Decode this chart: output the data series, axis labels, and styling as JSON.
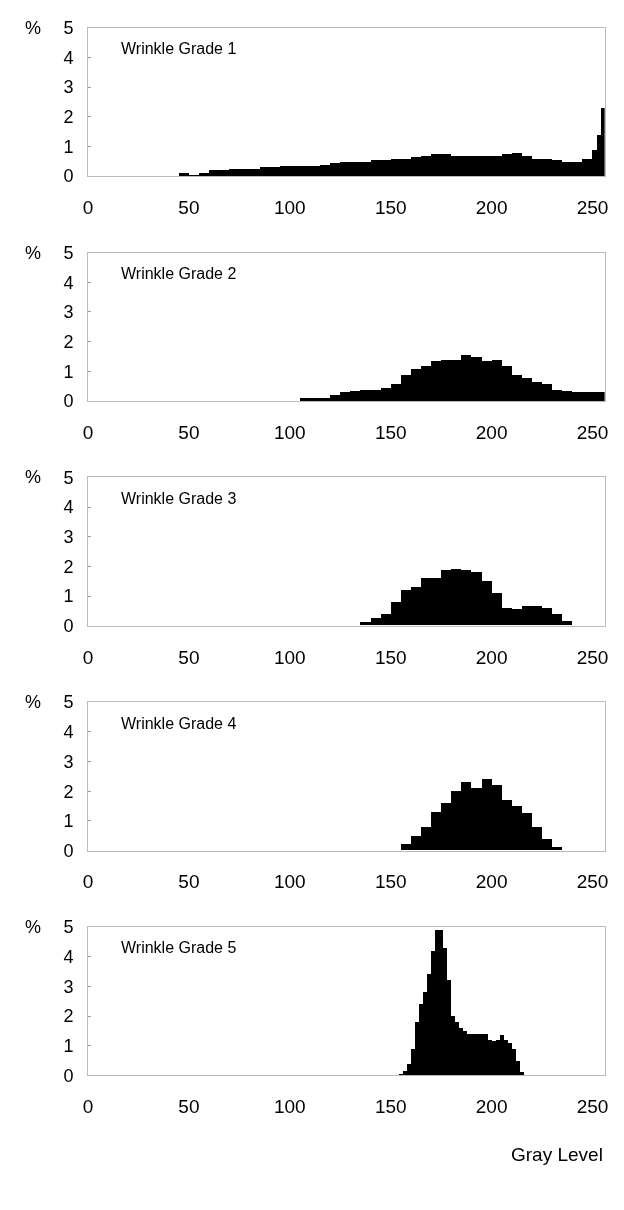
{
  "chart_data": [
    {
      "type": "histogram",
      "title": "Wrinkle Grade 1",
      "ylabel": "%",
      "bins": [
        45,
        50,
        55,
        60,
        65,
        70,
        75,
        80,
        85,
        90,
        95,
        100,
        105,
        110,
        115,
        120,
        125,
        130,
        135,
        140,
        145,
        150,
        155,
        160,
        165,
        170,
        175,
        180,
        185,
        190,
        195,
        200,
        205,
        210,
        215,
        220,
        225,
        230,
        235,
        240,
        245,
        250,
        252,
        254,
        256
      ],
      "values": [
        0.1,
        0.05,
        0.1,
        0.2,
        0.2,
        0.25,
        0.25,
        0.25,
        0.3,
        0.3,
        0.35,
        0.35,
        0.35,
        0.35,
        0.4,
        0.45,
        0.5,
        0.5,
        0.5,
        0.55,
        0.55,
        0.6,
        0.6,
        0.65,
        0.7,
        0.75,
        0.75,
        0.7,
        0.7,
        0.7,
        0.7,
        0.7,
        0.75,
        0.8,
        0.7,
        0.6,
        0.6,
        0.55,
        0.5,
        0.5,
        0.6,
        0.9,
        1.4,
        2.3
      ],
      "color": "#000000",
      "xlim": [
        0,
        256
      ],
      "ylim": [
        0,
        5
      ],
      "xticks": [
        0,
        50,
        100,
        150,
        200,
        250
      ],
      "yticks": [
        0,
        1,
        2,
        3,
        4,
        5
      ],
      "grid": false
    },
    {
      "type": "histogram",
      "title": "Wrinkle Grade 2",
      "ylabel": "%",
      "bins": [
        105,
        110,
        115,
        120,
        125,
        130,
        135,
        140,
        145,
        150,
        155,
        160,
        165,
        170,
        175,
        180,
        185,
        190,
        195,
        200,
        205,
        210,
        215,
        220,
        225,
        230,
        235,
        240,
        245,
        250,
        256
      ],
      "values": [
        0.1,
        0.1,
        0.1,
        0.2,
        0.3,
        0.35,
        0.4,
        0.4,
        0.45,
        0.6,
        0.9,
        1.1,
        1.2,
        1.35,
        1.4,
        1.4,
        1.55,
        1.5,
        1.35,
        1.4,
        1.2,
        0.9,
        0.8,
        0.65,
        0.6,
        0.4,
        0.35,
        0.3,
        0.3,
        0.3
      ],
      "color": "#000000",
      "xlim": [
        0,
        256
      ],
      "ylim": [
        0,
        5
      ],
      "xticks": [
        0,
        50,
        100,
        150,
        200,
        250
      ],
      "yticks": [
        0,
        1,
        2,
        3,
        4,
        5
      ],
      "grid": false
    },
    {
      "type": "histogram",
      "title": "Wrinkle Grade 3",
      "ylabel": "%",
      "bins": [
        135,
        140,
        145,
        150,
        155,
        160,
        165,
        170,
        175,
        180,
        185,
        190,
        195,
        200,
        205,
        210,
        215,
        220,
        225,
        230,
        235,
        240
      ],
      "values": [
        0.1,
        0.25,
        0.4,
        0.8,
        1.2,
        1.3,
        1.6,
        1.6,
        1.85,
        1.9,
        1.85,
        1.8,
        1.5,
        1.1,
        0.6,
        0.55,
        0.65,
        0.65,
        0.6,
        0.4,
        0.15
      ],
      "color": "#000000",
      "xlim": [
        0,
        256
      ],
      "ylim": [
        0,
        5
      ],
      "xticks": [
        0,
        50,
        100,
        150,
        200,
        250
      ],
      "yticks": [
        0,
        1,
        2,
        3,
        4,
        5
      ],
      "grid": false
    },
    {
      "type": "histogram",
      "title": "Wrinkle Grade 4",
      "ylabel": "%",
      "bins": [
        155,
        160,
        165,
        170,
        175,
        180,
        185,
        190,
        195,
        200,
        205,
        210,
        215,
        220,
        225,
        230,
        235
      ],
      "values": [
        0.2,
        0.5,
        0.8,
        1.3,
        1.6,
        2.0,
        2.3,
        2.1,
        2.4,
        2.2,
        1.7,
        1.5,
        1.25,
        0.8,
        0.4,
        0.1
      ],
      "color": "#000000",
      "xlim": [
        0,
        256
      ],
      "ylim": [
        0,
        5
      ],
      "xticks": [
        0,
        50,
        100,
        150,
        200,
        250
      ],
      "yticks": [
        0,
        1,
        2,
        3,
        4,
        5
      ],
      "grid": false
    },
    {
      "type": "histogram",
      "title": "Wrinkle Grade 5",
      "ylabel": "%",
      "xlabel": "Gray Level",
      "bins": [
        154,
        156,
        158,
        160,
        162,
        164,
        166,
        168,
        170,
        172,
        174,
        176,
        178,
        180,
        182,
        184,
        186,
        188,
        190,
        192,
        194,
        196,
        198,
        200,
        202,
        204,
        206,
        208,
        210,
        212,
        214,
        216
      ],
      "values": [
        0.05,
        0.15,
        0.4,
        0.9,
        1.8,
        2.4,
        2.8,
        3.4,
        4.2,
        4.9,
        4.9,
        4.3,
        3.2,
        2.0,
        1.8,
        1.6,
        1.5,
        1.4,
        1.4,
        1.4,
        1.4,
        1.4,
        1.2,
        1.15,
        1.2,
        1.35,
        1.2,
        1.1,
        0.9,
        0.5,
        0.1
      ],
      "color": "#000000",
      "xlim": [
        0,
        256
      ],
      "ylim": [
        0,
        5
      ],
      "xticks": [
        0,
        50,
        100,
        150,
        200,
        250
      ],
      "yticks": [
        0,
        1,
        2,
        3,
        4,
        5
      ],
      "grid": false
    }
  ]
}
